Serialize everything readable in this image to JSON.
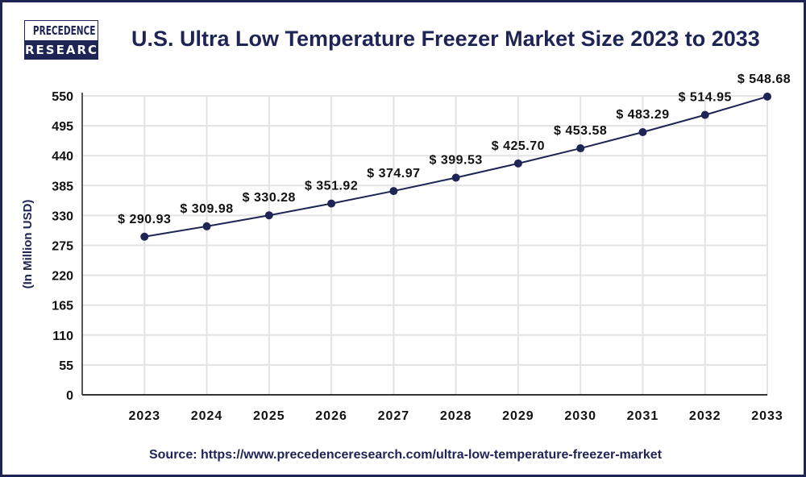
{
  "logo": {
    "line1": "PRECEDENCE",
    "line2": "RESEARCH"
  },
  "title": "U.S. Ultra Low Temperature Freezer Market Size 2023 to 2033",
  "source": "Source: https://www.precedenceresearch.com/ultra-low-temperature-freezer-market",
  "colors": {
    "line": "#1e2454",
    "text": "#1e2454",
    "grid": "#e3e3e3"
  },
  "chart_data": {
    "type": "line",
    "title": "U.S. Ultra Low Temperature Freezer Market Size 2023 to 2033",
    "xlabel": "",
    "ylabel": "(In Million USD)",
    "categories": [
      "2023",
      "2024",
      "2025",
      "2026",
      "2027",
      "2028",
      "2029",
      "2030",
      "2031",
      "2032",
      "2033"
    ],
    "values": [
      290.93,
      309.98,
      330.28,
      351.92,
      374.97,
      399.53,
      425.7,
      453.58,
      483.29,
      514.95,
      548.68
    ],
    "data_labels": [
      "$ 290.93",
      "$ 309.98",
      "$ 330.28",
      "$ 351.92",
      "$ 374.97",
      "$ 399.53",
      "$ 425.70",
      "$ 453.58",
      "$ 483.29",
      "$ 514.95",
      "$ 548.68"
    ],
    "yticks": [
      0,
      55,
      110,
      165,
      220,
      275,
      330,
      385,
      440,
      495,
      550
    ],
    "ylim": [
      0,
      550
    ],
    "grid": true,
    "legend": "none"
  }
}
